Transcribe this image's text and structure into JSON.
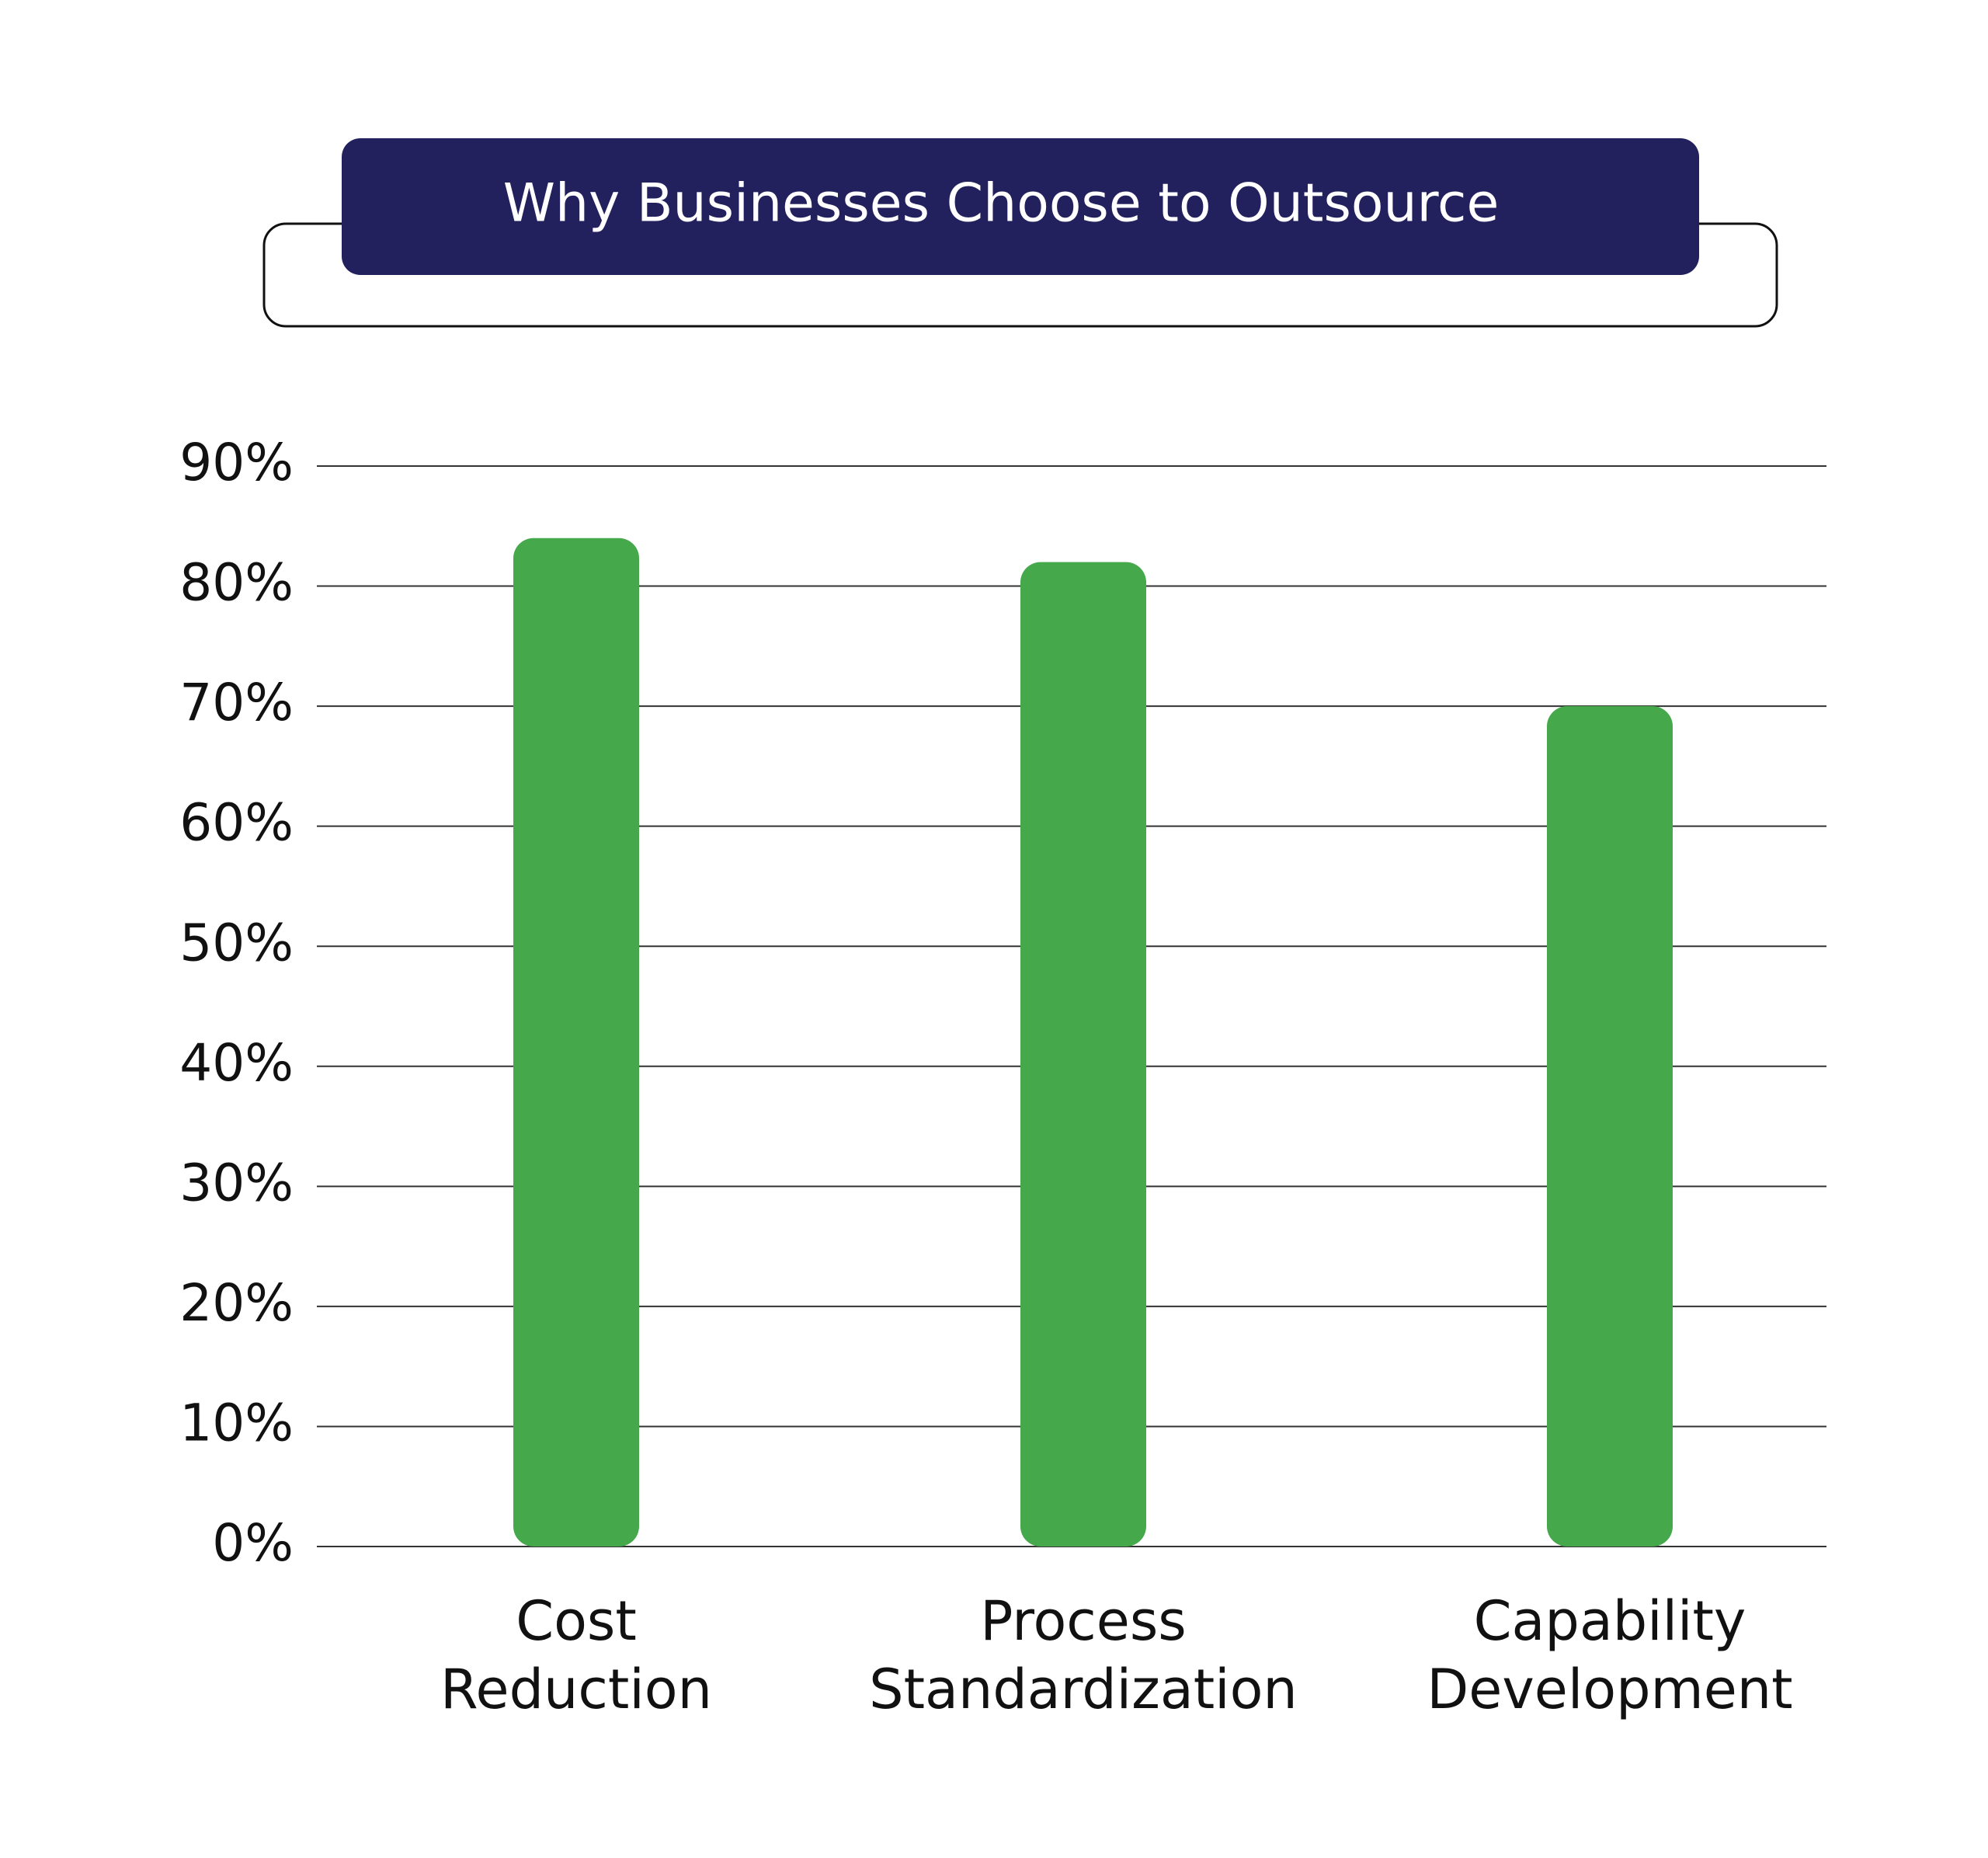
{
  "chart_data": {
    "type": "bar",
    "title": "Why Businesses Choose to Outsource",
    "categories": [
      [
        "Cost",
        "Reduction"
      ],
      [
        "Process",
        "Standardization"
      ],
      [
        "Capability",
        "Development"
      ]
    ],
    "values": [
      84,
      82,
      70
    ],
    "ylim": [
      0,
      90
    ],
    "yticks": [
      "0%",
      "10%",
      "20%",
      "30%",
      "40%",
      "50%",
      "60%",
      "70%",
      "80%",
      "90%"
    ],
    "grid": true,
    "colors": {
      "bar": "#45a84a",
      "title_bg": "#23215d",
      "gridline": "#333333",
      "frame": "#111111"
    }
  }
}
